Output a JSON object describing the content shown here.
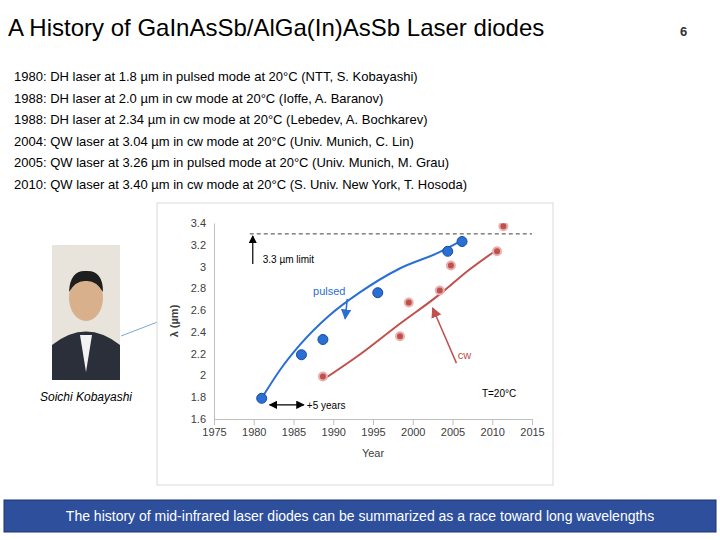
{
  "slide": {
    "title": "A History of GaInAsSb/AlGa(In)AsSb Laser diodes",
    "page": "6",
    "history": [
      "1980: DH laser at 1.8 µm in pulsed mode at 20°C  (NTT, S. Kobayashi)",
      "1988: DH laser at 2.0 µm in cw mode at 20°C (Ioffe, A. Baranov)",
      "1988: DH laser at 2.34 µm in cw mode at 20°C (Lebedev, A. Bochkarev)",
      "2004: QW laser at 3.04 µm in cw mode at 20°C (Univ. Munich, C. Lin)",
      "2005: QW laser at 3.26 µm in pulsed mode at 20°C (Univ. Munich, M. Grau)",
      "2010: QW laser at 3.40 µm in cw mode at 20°C (S. Univ. New York, T. Hosoda)"
    ],
    "photo_caption": "Soichi Kobayashi",
    "summary": "The history of mid-infrared laser diodes can be summarized as a race toward long wavelengths"
  },
  "chart_data": {
    "type": "scatter",
    "x_label": "Year",
    "y_label": "λ (µm)",
    "xlim": [
      1975,
      2015
    ],
    "xticks": [
      1975,
      1980,
      1985,
      1990,
      1995,
      2000,
      2005,
      2010,
      2015
    ],
    "ylim": [
      1.6,
      3.4
    ],
    "yticks": [
      1.6,
      1.8,
      2,
      2.2,
      2.4,
      2.6,
      2.8,
      3,
      3.2,
      3.4
    ],
    "series": [
      {
        "name": "pulsed",
        "color": "#2a6fd6",
        "marker": "circle",
        "x": [
          1981,
          1986,
          1988.7,
          1995.6,
          2004.4,
          2006.2
        ],
        "values": [
          1.79,
          2.19,
          2.33,
          2.76,
          3.14,
          3.23
        ],
        "trend": {
          "x": [
            1981,
            1983.3,
            1985.8,
            1989.5,
            1993.3,
            1998.3,
            2003.3,
            2006.2
          ],
          "values": [
            1.79,
            2.05,
            2.28,
            2.55,
            2.76,
            2.98,
            3.13,
            3.24
          ]
        }
      },
      {
        "name": "cw",
        "color": "#c0504d",
        "marker": "circle",
        "x": [
          1988.7,
          1998.4,
          1999.5,
          2003.4,
          2004.8,
          2010.6,
          2011.4
        ],
        "values": [
          1.99,
          2.36,
          2.67,
          2.78,
          3.01,
          3.14,
          3.37
        ],
        "trend": {
          "x": [
            1988.7,
            1993.3,
            1998.3,
            2003.3,
            2007.1,
            2010.5
          ],
          "values": [
            1.96,
            2.19,
            2.47,
            2.74,
            2.97,
            3.15
          ]
        }
      }
    ],
    "annotations": [
      {
        "text": "3.3 µm limit",
        "y": 3.3,
        "x": [
          1979.5,
          2015
        ]
      },
      {
        "text": "pulsed",
        "x": 1989.5,
        "y": 2.74,
        "arrow_to": [
          1991.5,
          2.52
        ]
      },
      {
        "text": "cw",
        "x": 2006.5,
        "y": 2.15,
        "arrow_to": [
          2002.5,
          2.62
        ]
      },
      {
        "text": "+5 years",
        "x": [
          1982,
          1986.3
        ],
        "y": 1.73
      },
      {
        "text": "T=20°C",
        "x": 2008.7,
        "y": 1.8
      }
    ]
  }
}
